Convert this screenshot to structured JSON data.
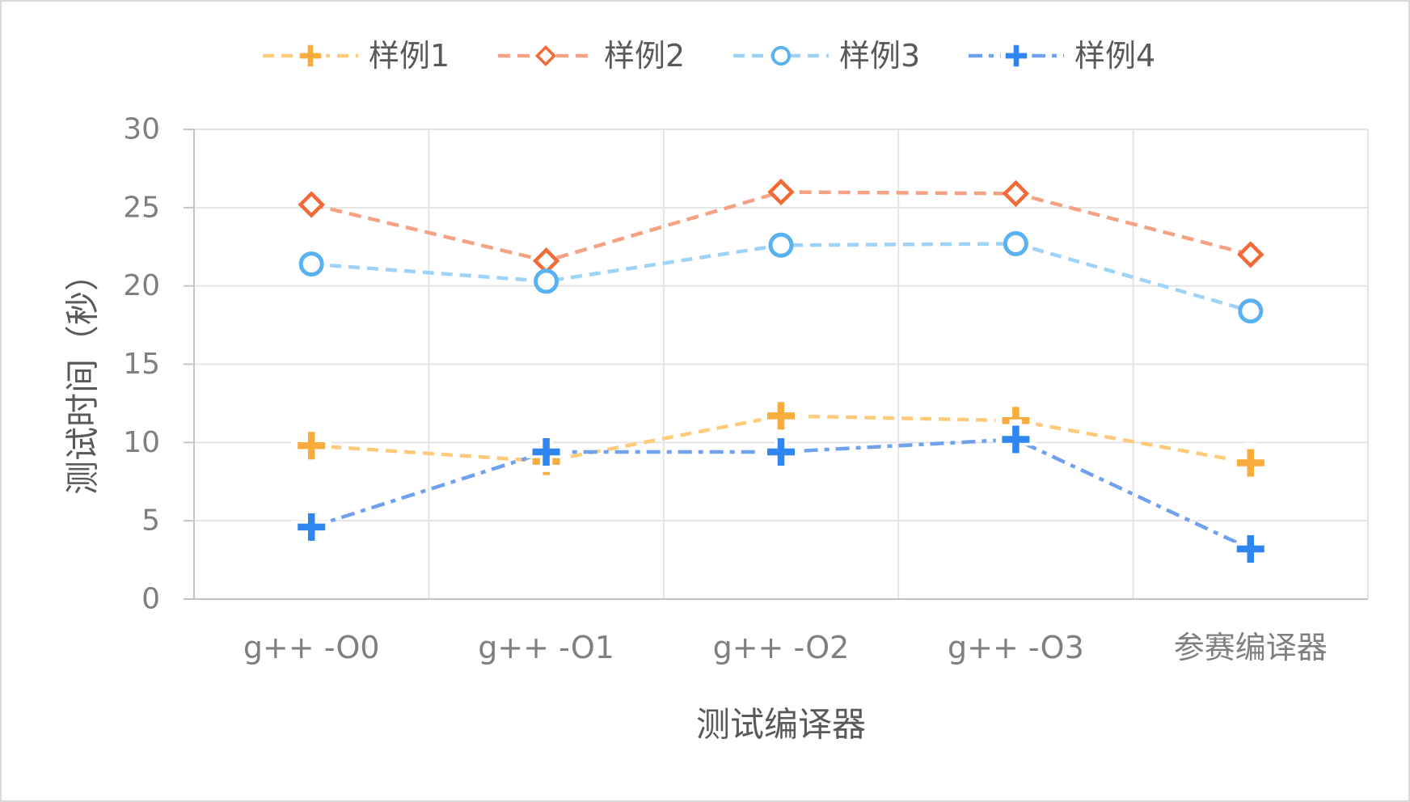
{
  "chart_data": {
    "type": "line",
    "xlabel": "测试编译器",
    "ylabel": "测试时间（秒）",
    "categories": [
      "g++ -O0",
      "g++ -O1",
      "g++ -O2",
      "g++ -O3",
      "参赛编译器"
    ],
    "ylim": [
      0,
      30
    ],
    "yticks": [
      0,
      5,
      10,
      15,
      20,
      25,
      30
    ],
    "grid": true,
    "legend_position": "top",
    "series": [
      {
        "name": "样例1",
        "values": [
          9.8,
          8.8,
          11.7,
          11.4,
          8.7
        ],
        "marker": "plus",
        "line_color": "#FFCB7A",
        "marker_color": "#F8AC3B"
      },
      {
        "name": "样例2",
        "values": [
          25.2,
          21.6,
          26.0,
          25.9,
          22.0
        ],
        "marker": "diamond",
        "line_color": "#F5A183",
        "marker_color": "#F26A36"
      },
      {
        "name": "样例3",
        "values": [
          21.4,
          20.3,
          22.6,
          22.7,
          18.4
        ],
        "marker": "circle",
        "line_color": "#9ED2F6",
        "marker_color": "#58B2F1"
      },
      {
        "name": "样例4",
        "values": [
          4.6,
          9.4,
          9.4,
          10.2,
          3.2
        ],
        "marker": "plus",
        "line_color": "#6FA1EC",
        "marker_color": "#2F86F0"
      }
    ]
  }
}
